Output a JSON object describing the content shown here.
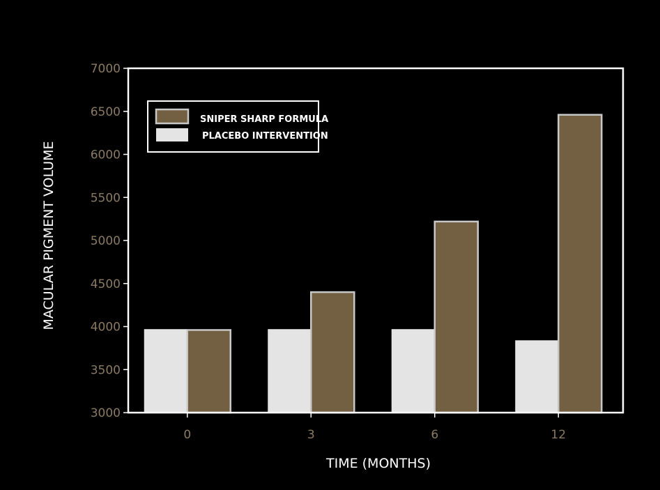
{
  "colors": {
    "background": "#000000",
    "axis": "#ffffff",
    "tick_label": "#8a7a62",
    "formula_bar": "#736043",
    "formula_edge": "#c8c8c8",
    "placebo_bar": "#e4e4e4"
  },
  "chart_data": {
    "type": "bar",
    "title": "",
    "xlabel": "TIME (MONTHS)",
    "ylabel": "MACULAR PIGMENT VOLUME",
    "categories": [
      "0",
      "3",
      "6",
      "12"
    ],
    "series": [
      {
        "name": "PLACEBO INTERVENTION",
        "values": [
          3970,
          3970,
          3970,
          3840
        ]
      },
      {
        "name": "SNIPER SHARP FORMULA",
        "values": [
          3960,
          4400,
          5220,
          6460
        ]
      }
    ],
    "ylim": [
      3000,
      7000
    ],
    "yticks": [
      3000,
      3500,
      4000,
      4500,
      5000,
      5500,
      6000,
      6500,
      7000
    ],
    "grid": false,
    "legend_position": "top-left"
  }
}
